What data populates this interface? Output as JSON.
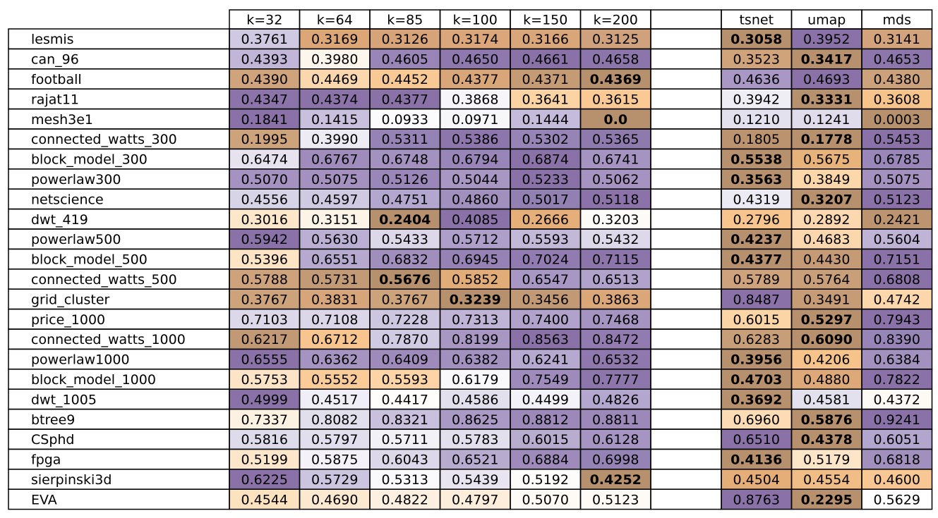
{
  "chart_data": {
    "type": "table",
    "column_groups": [
      {
        "name": "",
        "columns": [
          "k=32",
          "k=64",
          "k=85",
          "k=100",
          "k=150",
          "k=200"
        ]
      },
      {
        "name": "",
        "columns": [
          "tsnet",
          "umap",
          "mds"
        ]
      }
    ],
    "colormap": {
      "low": "#b7916e",
      "mid": "#f7f7f7",
      "high": "#8a72a8",
      "low_mid": "#f6c48a",
      "high_mid": "#cfc9e3"
    },
    "rows": [
      {
        "name": "lesmis",
        "values": [
          "0.3761",
          "0.3169",
          "0.3126",
          "0.3174",
          "0.3166",
          "0.3125",
          "0.3058",
          "0.3952",
          "0.3141"
        ],
        "colors": [
          "#cfc9e2",
          "#dda676",
          "#d7a47a",
          "#dba679",
          "#d9a679",
          "#cfa27d",
          "#b7916e",
          "#8a72a8",
          "#d3a37b"
        ],
        "bold": [
          6
        ]
      },
      {
        "name": "can_96",
        "values": [
          "0.4393",
          "0.3980",
          "0.4605",
          "0.4650",
          "0.4661",
          "0.4658",
          "0.3523",
          "0.3417",
          "0.4653"
        ],
        "colors": [
          "#c1b6d8",
          "#fdf6ec",
          "#9a85b9",
          "#8e78ad",
          "#8a72a8",
          "#8c75aa",
          "#d0a37b",
          "#b7916e",
          "#8d76ab"
        ],
        "bold": [
          7
        ]
      },
      {
        "name": "football",
        "values": [
          "0.4390",
          "0.4469",
          "0.4452",
          "0.4377",
          "0.4371",
          "0.4369",
          "0.4636",
          "0.4693",
          "0.4380"
        ],
        "colors": [
          "#cfa37c",
          "#fbd7ad",
          "#f8c895",
          "#d8a679",
          "#c59b76",
          "#b7916e",
          "#a997c6",
          "#8a72a8",
          "#cba27b"
        ],
        "bold": [
          5
        ]
      },
      {
        "name": "rajat11",
        "values": [
          "0.4347",
          "0.4374",
          "0.4377",
          "0.3868",
          "0.3641",
          "0.3615",
          "0.3942",
          "0.3331",
          "0.3608"
        ],
        "colors": [
          "#8c74aa",
          "#8b73a9",
          "#8a72a8",
          "#f7f5fa",
          "#fcd3a2",
          "#fbca94",
          "#efeef5",
          "#b7916e",
          "#f6c48a"
        ],
        "bold": [
          7
        ]
      },
      {
        "name": "mesh3e1",
        "values": [
          "0.1841",
          "0.1415",
          "0.0933",
          "0.0971",
          "0.1444",
          "0.0",
          "0.1210",
          "0.1241",
          "0.0003"
        ],
        "colors": [
          "#8a72a8",
          "#c8c0dd",
          "#fbfafc",
          "#f7f6f9",
          "#c4bcda",
          "#b7916e",
          "#e4e1ee",
          "#e0dceb",
          "#b7916e"
        ],
        "bold": [
          5
        ]
      },
      {
        "name": "connected_watts_300",
        "values": [
          "0.1995",
          "0.3990",
          "0.5311",
          "0.5386",
          "0.5302",
          "0.5365",
          "0.1805",
          "0.1778",
          "0.5453"
        ],
        "colors": [
          "#cda37c",
          "#edebf4",
          "#9683b6",
          "#8d76ab",
          "#9784b7",
          "#8f7aae",
          "#bb936f",
          "#b7916e",
          "#8a72a8"
        ],
        "bold": [
          7
        ]
      },
      {
        "name": "block_model_300",
        "values": [
          "0.6474",
          "0.6767",
          "0.6748",
          "0.6794",
          "0.6874",
          "0.6741",
          "0.5538",
          "0.5675",
          "0.6785"
        ],
        "colors": [
          "#e6e3ef",
          "#9f8cbd",
          "#a391bf",
          "#9986b8",
          "#8a72a8",
          "#a593c1",
          "#b7916e",
          "#e8b27b",
          "#9a87b9"
        ],
        "bold": [
          6
        ]
      },
      {
        "name": "powerlaw300",
        "values": [
          "0.5070",
          "0.5075",
          "0.5126",
          "0.5044",
          "0.5233",
          "0.5062",
          "0.3563",
          "0.3849",
          "0.5075"
        ],
        "colors": [
          "#a592c1",
          "#a491c0",
          "#9a86b8",
          "#a896c3",
          "#8a72a8",
          "#a693c2",
          "#b7916e",
          "#fcd7aa",
          "#a491c0"
        ],
        "bold": [
          6
        ]
      },
      {
        "name": "netscience",
        "values": [
          "0.4556",
          "0.4597",
          "0.4751",
          "0.4860",
          "0.5017",
          "0.5118",
          "0.4319",
          "0.3207",
          "0.5123"
        ],
        "colors": [
          "#d8d4e8",
          "#cfc9e2",
          "#b4a7cf",
          "#a190be",
          "#9280b3",
          "#8b73a9",
          "#eceaf3",
          "#b7916e",
          "#8a72a8"
        ],
        "bold": [
          7
        ]
      },
      {
        "name": "dwt_419",
        "values": [
          "0.3016",
          "0.3151",
          "0.2404",
          "0.4085",
          "0.2666",
          "0.3203",
          "0.2796",
          "0.2892",
          "0.2421"
        ],
        "colors": [
          "#fce7cb",
          "#fdf4e8",
          "#b7916e",
          "#8a72a8",
          "#e6af79",
          "#fdfbf8",
          "#f7c58d",
          "#fbd8b0",
          "#bc9470"
        ],
        "bold": [
          2
        ]
      },
      {
        "name": "powerlaw500",
        "values": [
          "0.5942",
          "0.5630",
          "0.5433",
          "0.5712",
          "0.5593",
          "0.5432",
          "0.4237",
          "0.4683",
          "0.5604"
        ],
        "colors": [
          "#8a72a8",
          "#bbb0d4",
          "#dcd8ea",
          "#ad9fca",
          "#c2b8d8",
          "#ddd9ea",
          "#b7916e",
          "#fbd7ad",
          "#bfb4d6"
        ],
        "bold": [
          6
        ]
      },
      {
        "name": "block_model_500",
        "values": [
          "0.5396",
          "0.6551",
          "0.6832",
          "0.6945",
          "0.7024",
          "0.7115",
          "0.4377",
          "0.4430",
          "0.7151"
        ],
        "colors": [
          "#fde4c5",
          "#b6a9cf",
          "#a08ebd",
          "#9682b5",
          "#917bb1",
          "#8c75ab",
          "#b7916e",
          "#c59b76",
          "#8a72a8"
        ],
        "bold": [
          6
        ]
      },
      {
        "name": "connected_watts_500",
        "values": [
          "0.5788",
          "0.5731",
          "0.5676",
          "0.5852",
          "0.6547",
          "0.6513",
          "0.5789",
          "0.5764",
          "0.6808"
        ],
        "colors": [
          "#cea37c",
          "#c39a76",
          "#b7916e",
          "#e2ac78",
          "#a897c4",
          "#b0a2cb",
          "#cea37c",
          "#c99f79",
          "#8a72a8"
        ],
        "bold": [
          2
        ]
      },
      {
        "name": "grid_cluster",
        "values": [
          "0.3767",
          "0.3831",
          "0.3767",
          "0.3239",
          "0.3456",
          "0.3863",
          "0.8487",
          "0.3491",
          "0.4742"
        ],
        "colors": [
          "#cda37c",
          "#d7a57a",
          "#cda37c",
          "#b7916e",
          "#c29975",
          "#dba779",
          "#8a72a8",
          "#c69c77",
          "#fcd7ab"
        ],
        "bold": [
          3
        ]
      },
      {
        "name": "price_1000",
        "values": [
          "0.7103",
          "0.7108",
          "0.7228",
          "0.7313",
          "0.7400",
          "0.7468",
          "0.6015",
          "0.5297",
          "0.7943"
        ],
        "colors": [
          "#dcd8ea",
          "#dbd7e9",
          "#cdc6e0",
          "#bfb4d6",
          "#b0a2cb",
          "#a593c1",
          "#fcd5a6",
          "#b7916e",
          "#8a72a8"
        ],
        "bold": [
          7
        ]
      },
      {
        "name": "connected_watts_1000",
        "values": [
          "0.6217",
          "0.6712",
          "0.7870",
          "0.8199",
          "0.8563",
          "0.8472",
          "0.6283",
          "0.6090",
          "0.8390"
        ],
        "colors": [
          "#c29975",
          "#f7c58d",
          "#d0cae3",
          "#a896c3",
          "#8a72a8",
          "#917bb1",
          "#c89e78",
          "#b7916e",
          "#9885b7"
        ],
        "bold": [
          7
        ]
      },
      {
        "name": "powerlaw1000",
        "values": [
          "0.6555",
          "0.6362",
          "0.6409",
          "0.6382",
          "0.6241",
          "0.6532",
          "0.3956",
          "0.4206",
          "0.6384"
        ],
        "colors": [
          "#8a72a8",
          "#a593c1",
          "#9e8bbc",
          "#a290bf",
          "#b6a9cf",
          "#8e78ad",
          "#b7916e",
          "#f6c48a",
          "#a290bf"
        ],
        "bold": [
          6
        ]
      },
      {
        "name": "block_model_1000",
        "values": [
          "0.5753",
          "0.5552",
          "0.5593",
          "0.6179",
          "0.7549",
          "0.7777",
          "0.4703",
          "0.4880",
          "0.7822"
        ],
        "colors": [
          "#fde4c6",
          "#fbcc98",
          "#fcd4a5",
          "#f9f8fb",
          "#9e8bbc",
          "#8d76ab",
          "#b7916e",
          "#dda979",
          "#8a72a8"
        ],
        "bold": [
          6
        ]
      },
      {
        "name": "dwt_1005",
        "values": [
          "0.4999",
          "0.4517",
          "0.4417",
          "0.4586",
          "0.4499",
          "0.4826",
          "0.3692",
          "0.4581",
          "0.4372"
        ],
        "colors": [
          "#8a72a8",
          "#f0eef6",
          "#fefdfc",
          "#e3e0ee",
          "#f3f2f8",
          "#b4a7cf",
          "#b7916e",
          "#e4e1ee",
          "#fdfaf6"
        ],
        "bold": [
          6
        ]
      },
      {
        "name": "btree9",
        "values": [
          "0.7337",
          "0.8082",
          "0.8321",
          "0.8625",
          "0.8812",
          "0.8811",
          "0.6960",
          "0.5876",
          "0.9241"
        ],
        "colors": [
          "#fdf1e1",
          "#e2dfed",
          "#c8c0dd",
          "#aa99c5",
          "#9c89ba",
          "#9c89ba",
          "#fddcb5",
          "#b7916e",
          "#8a72a8"
        ],
        "bold": [
          7
        ]
      },
      {
        "name": "CSphd",
        "values": [
          "0.5816",
          "0.5797",
          "0.5711",
          "0.5783",
          "0.6015",
          "0.6128",
          "0.6510",
          "0.4378",
          "0.6051"
        ],
        "colors": [
          "#dedbeb",
          "#e1deed",
          "#f2f1f7",
          "#e3e0ee",
          "#b9adcf",
          "#a694c2",
          "#8a72a8",
          "#b7916e",
          "#b3a6ce"
        ],
        "bold": [
          7
        ]
      },
      {
        "name": "fpga",
        "values": [
          "0.5199",
          "0.5875",
          "0.6043",
          "0.6521",
          "0.6884",
          "0.6998",
          "0.4136",
          "0.5179",
          "0.6818"
        ],
        "colors": [
          "#fde6c9",
          "#f4f2f8",
          "#dcd8ea",
          "#b8abd0",
          "#9e8bbc",
          "#9683b5",
          "#b7916e",
          "#fde5c8",
          "#a18fbe"
        ],
        "bold": [
          6
        ]
      },
      {
        "name": "sierpinski3d",
        "values": [
          "0.6225",
          "0.5729",
          "0.5313",
          "0.5439",
          "0.5192",
          "0.4252",
          "0.4504",
          "0.4554",
          "0.4600"
        ],
        "colors": [
          "#8a72a8",
          "#ccc5e0",
          "#faf9fb",
          "#e8e5f0",
          "#fefcfa",
          "#b7916e",
          "#e5ae79",
          "#f1bd86",
          "#f8c794"
        ],
        "bold": [
          5
        ]
      },
      {
        "name": "EVA",
        "values": [
          "0.4544",
          "0.4690",
          "0.4822",
          "0.4797",
          "0.5070",
          "0.5123",
          "0.8763",
          "0.2295",
          "0.5629"
        ],
        "colors": [
          "#fde2c0",
          "#fde9d0",
          "#fdf0e0",
          "#fdeedc",
          "#fefaf5",
          "#fefbf7",
          "#8a72a8",
          "#b7916e",
          "#ffffff"
        ],
        "bold": [
          7
        ]
      }
    ]
  }
}
